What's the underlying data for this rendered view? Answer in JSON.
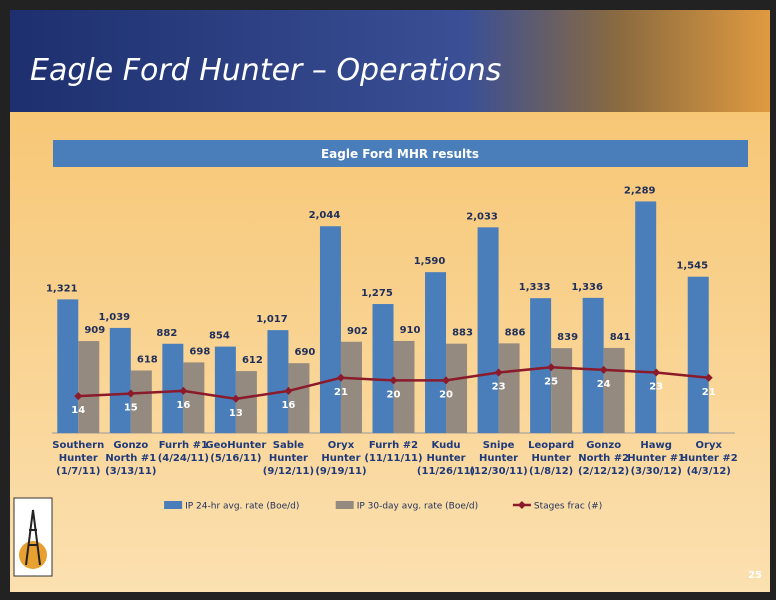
{
  "slide": {
    "title": "Eagle Ford Hunter – Operations",
    "page_number": "25"
  },
  "chart_data": {
    "type": "bar",
    "title": "Eagle Ford MHR results",
    "categories": [
      "Southern\nHunter\n(1/7/11)",
      "Gonzo\nNorth #1\n(3/13/11)",
      "Furrh #1\n(4/24/11)",
      "GeoHunter\n(5/16/11)",
      "Sable\nHunter\n(9/12/11)",
      "Oryx\nHunter\n(9/19/11)",
      "Furrh #2\n(11/11/11)",
      "Kudu\nHunter\n(11/26/11)",
      "Snipe\nHunter\n(12/30/11)",
      "Leopard\nHunter\n(1/8/12)",
      "Gonzo\nNorth #2\n(2/12/12)",
      "Hawg\nHunter #1\n(3/30/12)",
      "Oryx\nHunter #2\n(4/3/12)"
    ],
    "series": [
      {
        "name": "IP 24-hr avg. rate (Boe/d)",
        "type": "bar",
        "color": "#4a7ebb",
        "values": [
          1321,
          1039,
          882,
          854,
          1017,
          2044,
          1275,
          1590,
          2033,
          1333,
          1336,
          2289,
          1545
        ],
        "value_labels": [
          "1,321",
          "1,039",
          "882",
          "854",
          "1,017",
          "2,044",
          "1,275",
          "1,590",
          "2,033",
          "1,333",
          "1,336",
          "2,289",
          "1,545"
        ]
      },
      {
        "name": "IP 30-day avg. rate (Boe/d)",
        "type": "bar",
        "color": "#948a7f",
        "values": [
          909,
          618,
          698,
          612,
          690,
          902,
          910,
          883,
          886,
          839,
          841,
          null,
          null
        ]
      },
      {
        "name": "Stages frac (#)",
        "type": "line",
        "axis": "y2",
        "color": "#8b1a2b",
        "values": [
          14,
          15,
          16,
          13,
          16,
          21,
          20,
          20,
          23,
          25,
          24,
          23,
          21
        ]
      }
    ],
    "ylim": [
      0,
      2600
    ],
    "y2lim": [
      0,
      100
    ],
    "legend": "bottom"
  }
}
